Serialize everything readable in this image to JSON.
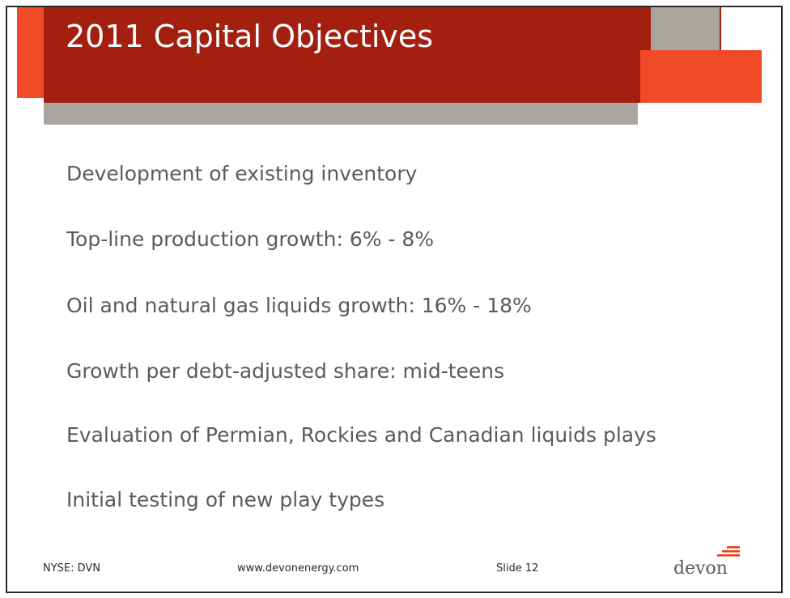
{
  "slide": {
    "title": "2011 Capital Objectives",
    "bullets": [
      "Development of existing inventory",
      "Top-line production growth: 6% - 8%",
      "Oil and natural gas liquids growth: 16% - 18%",
      "Growth per debt-adjusted share: mid-teens",
      "Evaluation of Permian, Rockies and Canadian liquids plays",
      "Initial testing of new play types"
    ]
  },
  "footer": {
    "ticker": "NYSE: DVN",
    "website": "www.devonenergy.com",
    "slide_number": "Slide 12",
    "logo_text": "devon"
  },
  "colors": {
    "title_bar": "#a32011",
    "accent_orange": "#f04a28",
    "accent_gray": "#aaa59f",
    "body_text": "#5e5a56"
  },
  "icons": {
    "logo_mark": "devon-flame-lines-icon"
  }
}
